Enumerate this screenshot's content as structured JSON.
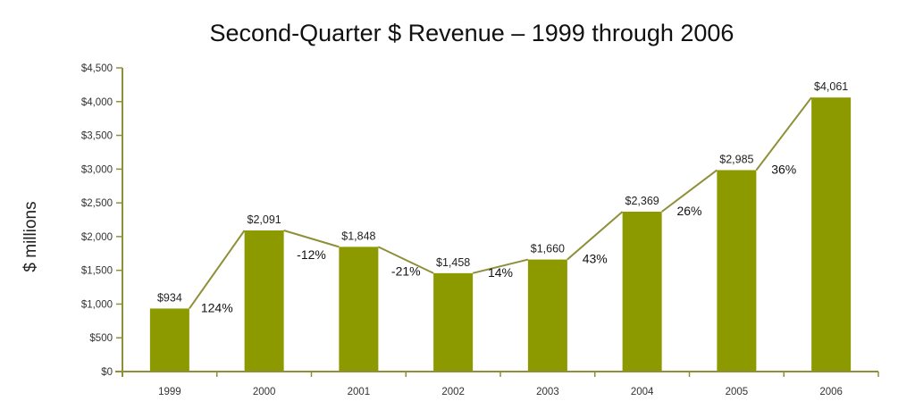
{
  "colors": {
    "bar": "#8c9a00",
    "line": "#8f8f3a",
    "axis": "#8f8f3a"
  },
  "chart_data": {
    "type": "bar",
    "title": "Second-Quarter $ Revenue – 1999 through 2006",
    "xlabel": "",
    "ylabel": "$ millions",
    "ylim": [
      0,
      4500
    ],
    "grid": false,
    "categories": [
      "1999",
      "2000",
      "2001",
      "2002",
      "2003",
      "2004",
      "2005",
      "2006"
    ],
    "values": [
      934,
      2091,
      1848,
      1458,
      1660,
      2369,
      2985,
      4061
    ],
    "value_labels": [
      "$934",
      "$2,091",
      "$1,848",
      "$1,458",
      "$1,660",
      "$2,369",
      "$2,985",
      "$4,061"
    ],
    "yticks": [
      0,
      500,
      1000,
      1500,
      2000,
      2500,
      3000,
      3500,
      4000,
      4500
    ],
    "ytick_labels": [
      "$0",
      "$500",
      "$1,000",
      "$1,500",
      "$2,000",
      "$2,500",
      "$3,000",
      "$3,500",
      "$4,000",
      "$4,500"
    ],
    "growth_labels": [
      "124%",
      "-12%",
      "-21%",
      "14%",
      "43%",
      "26%",
      "36%"
    ],
    "connector": "line from top of each bar to top of the next bar"
  }
}
